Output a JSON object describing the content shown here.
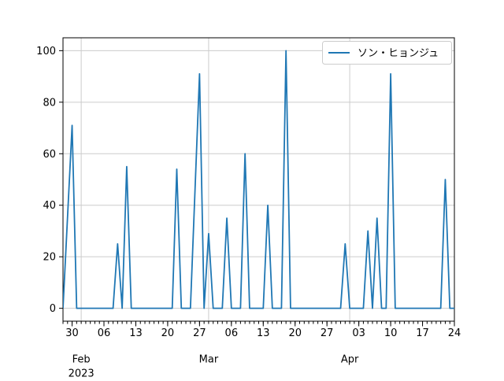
{
  "figure": {
    "background": "#ffffff",
    "plot_background": "#ffffff"
  },
  "chart_data": {
    "type": "line",
    "title": "",
    "xlabel": "",
    "ylabel": "",
    "grid": true,
    "grid_color": "#cccccc",
    "spine_color": "#000000",
    "legend": {
      "position": "upper right",
      "border_color": "#cccccc",
      "background": "#ffffff",
      "label": "ソン・ヒョンジュ"
    },
    "series": [
      {
        "name": "ソン・ヒョンジュ",
        "color": "#1f77b4",
        "points": [
          [
            "2023-01-28",
            0
          ],
          [
            "2023-01-30",
            71
          ],
          [
            "2023-01-31",
            0
          ],
          [
            "2023-02-08",
            0
          ],
          [
            "2023-02-09",
            25
          ],
          [
            "2023-02-10",
            0
          ],
          [
            "2023-02-11",
            55
          ],
          [
            "2023-02-12",
            0
          ],
          [
            "2023-02-21",
            0
          ],
          [
            "2023-02-22",
            54
          ],
          [
            "2023-02-23",
            0
          ],
          [
            "2023-02-25",
            0
          ],
          [
            "2023-02-27",
            91
          ],
          [
            "2023-02-28",
            0
          ],
          [
            "2023-03-01",
            29
          ],
          [
            "2023-03-02",
            0
          ],
          [
            "2023-03-04",
            0
          ],
          [
            "2023-03-05",
            35
          ],
          [
            "2023-03-06",
            0
          ],
          [
            "2023-03-08",
            0
          ],
          [
            "2023-03-09",
            60
          ],
          [
            "2023-03-10",
            0
          ],
          [
            "2023-03-13",
            0
          ],
          [
            "2023-03-14",
            40
          ],
          [
            "2023-03-15",
            0
          ],
          [
            "2023-03-17",
            0
          ],
          [
            "2023-03-18",
            100
          ],
          [
            "2023-03-19",
            0
          ],
          [
            "2023-03-30",
            0
          ],
          [
            "2023-03-31",
            25
          ],
          [
            "2023-04-01",
            0
          ],
          [
            "2023-04-04",
            0
          ],
          [
            "2023-04-05",
            30
          ],
          [
            "2023-04-06",
            0
          ],
          [
            "2023-04-07",
            35
          ],
          [
            "2023-04-08",
            0
          ],
          [
            "2023-04-09",
            0
          ],
          [
            "2023-04-10",
            91
          ],
          [
            "2023-04-11",
            0
          ],
          [
            "2023-04-21",
            0
          ],
          [
            "2023-04-22",
            50
          ],
          [
            "2023-04-23",
            0
          ],
          [
            "2023-04-24",
            0
          ]
        ]
      }
    ],
    "x_axis": {
      "type": "date",
      "min": "2023-01-28",
      "max": "2023-04-24",
      "minor_tick_interval_days": 1,
      "major_ticks": [
        {
          "date": "2023-01-30",
          "label": "30"
        },
        {
          "date": "2023-02-06",
          "label": "06"
        },
        {
          "date": "2023-02-13",
          "label": "13"
        },
        {
          "date": "2023-02-20",
          "label": "20"
        },
        {
          "date": "2023-02-27",
          "label": "27"
        },
        {
          "date": "2023-03-06",
          "label": "06"
        },
        {
          "date": "2023-03-13",
          "label": "13"
        },
        {
          "date": "2023-03-20",
          "label": "20"
        },
        {
          "date": "2023-03-27",
          "label": "27"
        },
        {
          "date": "2023-04-03",
          "label": "03"
        },
        {
          "date": "2023-04-10",
          "label": "10"
        },
        {
          "date": "2023-04-17",
          "label": "17"
        },
        {
          "date": "2023-04-24",
          "label": "24"
        }
      ],
      "month_labels": [
        {
          "date": "2023-02-01",
          "label": "Feb",
          "sublabel": "2023"
        },
        {
          "date": "2023-03-01",
          "label": "Mar",
          "sublabel": ""
        },
        {
          "date": "2023-04-01",
          "label": "Apr",
          "sublabel": ""
        }
      ]
    },
    "y_axis": {
      "min": -5,
      "max": 105,
      "ticks": [
        0,
        20,
        40,
        60,
        80,
        100
      ]
    }
  }
}
